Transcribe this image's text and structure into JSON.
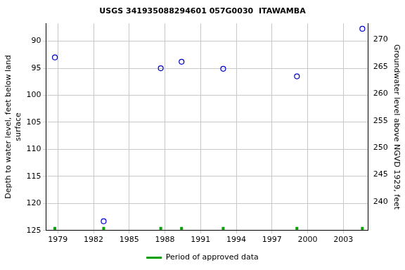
{
  "chart_data": {
    "type": "scatter",
    "title": "USGS 341935088294601 057G0030  ITAWAMBA",
    "ylabel": [
      "Depth to water level, feet below land",
      "surface"
    ],
    "y2label": "Groundwater level above NGVD 1929, feet",
    "grid": true,
    "legend": "bottom",
    "xlim": [
      1978.0,
      2005.1
    ],
    "xticks": [
      1979,
      1982,
      1985,
      1988,
      1991,
      1994,
      1997,
      2000,
      2003
    ],
    "ylim": [
      125,
      86.7
    ],
    "yticks": [
      90,
      95,
      100,
      105,
      110,
      115,
      120,
      125
    ],
    "y2lim": [
      234.7,
      273.0
    ],
    "y2ticks": [
      240,
      245,
      250,
      255,
      260,
      265,
      270
    ],
    "series": [
      {
        "color": "#0000cc",
        "marker": "open_circle",
        "x": [
          1978.75,
          1982.85,
          1987.65,
          1989.4,
          1992.9,
          1999.1,
          2004.6
        ],
        "values": [
          93.0,
          123.3,
          95.0,
          93.8,
          95.1,
          96.5,
          87.7
        ]
      },
      {
        "name": "Period of approved data",
        "color": "#00a000",
        "marker": "square",
        "x": [
          1978.75,
          1982.85,
          1987.65,
          1989.4,
          1992.9,
          1999.1,
          2004.6
        ],
        "values": [
          124.6,
          124.6,
          124.6,
          124.6,
          124.6,
          124.6,
          124.6
        ]
      }
    ]
  }
}
